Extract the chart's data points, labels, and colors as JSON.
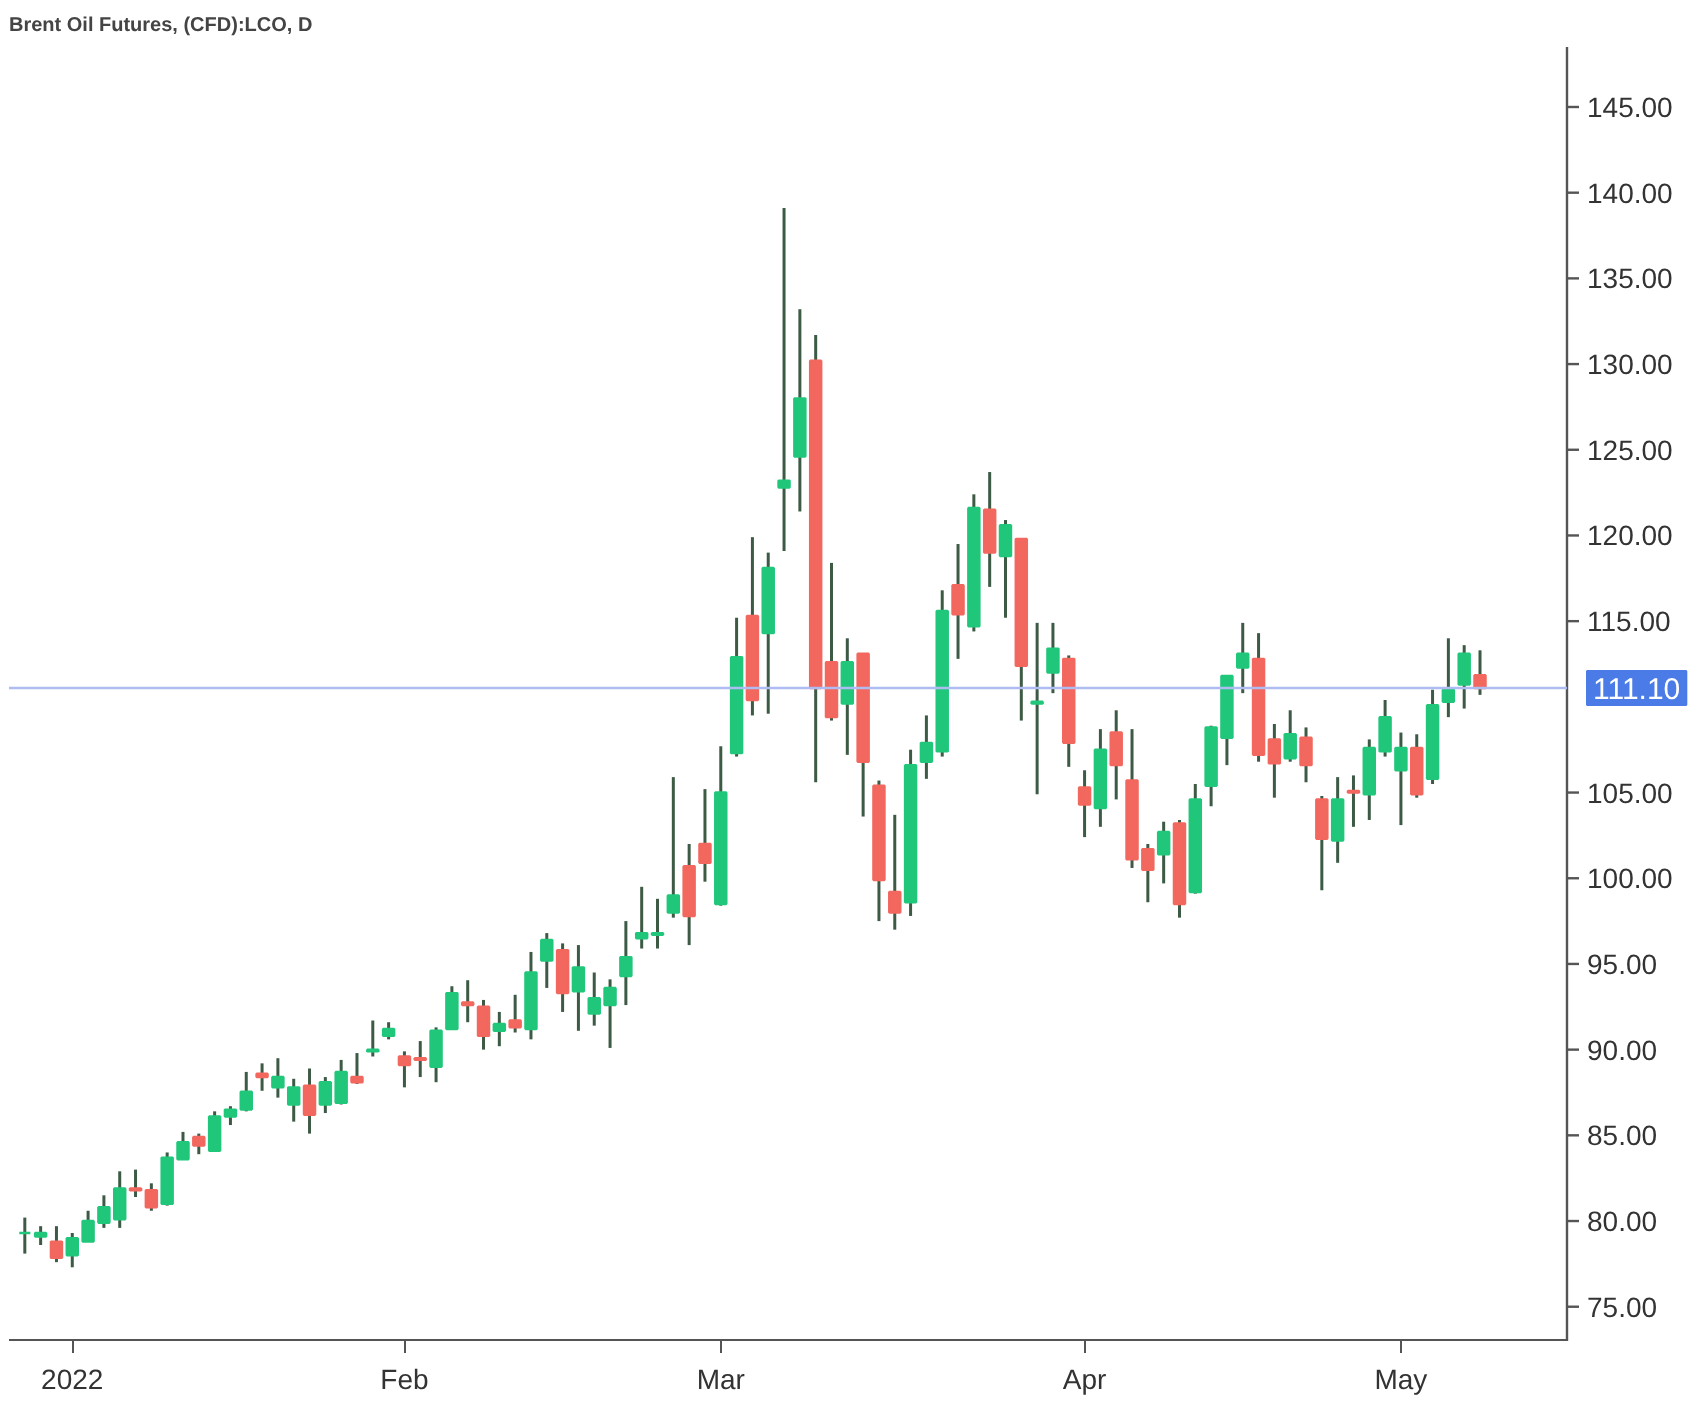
{
  "chart_data": {
    "type": "candlestick",
    "title": "Brent Oil Futures, (CFD):LCO, D",
    "categories": [
      null,
      null,
      null,
      "2022",
      null,
      null,
      null,
      null,
      null,
      null,
      null,
      null,
      null,
      null,
      null,
      null,
      null,
      null,
      null,
      null,
      null,
      null,
      null,
      null,
      "Feb",
      null,
      null,
      null,
      null,
      null,
      null,
      null,
      null,
      null,
      null,
      null,
      null,
      null,
      null,
      null,
      null,
      null,
      null,
      null,
      "Mar",
      null,
      null,
      null,
      null,
      null,
      null,
      null,
      null,
      null,
      null,
      null,
      null,
      null,
      null,
      null,
      null,
      null,
      null,
      null,
      null,
      null,
      null,
      "Apr",
      null,
      null,
      null,
      null,
      null,
      null,
      null,
      null,
      null,
      null,
      null,
      null,
      null,
      null,
      null,
      null,
      null,
      null,
      null,
      "May",
      null,
      null,
      null,
      null,
      null
    ],
    "ohlc": [
      [
        79.3,
        80.2,
        78.1,
        79.3
      ],
      [
        79.1,
        79.7,
        78.6,
        79.3
      ],
      [
        78.8,
        79.7,
        77.6,
        77.85
      ],
      [
        78.0,
        79.3,
        77.3,
        79.0
      ],
      [
        78.8,
        80.6,
        78.8,
        80.0
      ],
      [
        79.9,
        81.5,
        79.6,
        80.8
      ],
      [
        80.1,
        82.9,
        79.6,
        81.9
      ],
      [
        81.9,
        83.0,
        81.4,
        81.8
      ],
      [
        81.8,
        82.2,
        80.6,
        80.8
      ],
      [
        81.0,
        84.0,
        80.9,
        83.7
      ],
      [
        83.6,
        85.2,
        83.6,
        84.6
      ],
      [
        84.9,
        85.1,
        83.9,
        84.4
      ],
      [
        84.1,
        86.4,
        84.1,
        86.1
      ],
      [
        86.1,
        86.7,
        85.6,
        86.5
      ],
      [
        86.5,
        88.7,
        86.4,
        87.55
      ],
      [
        88.6,
        89.2,
        87.6,
        88.4
      ],
      [
        87.8,
        89.5,
        87.2,
        88.4
      ],
      [
        86.8,
        88.3,
        85.8,
        87.8
      ],
      [
        87.9,
        88.9,
        85.1,
        86.2
      ],
      [
        86.8,
        88.4,
        86.3,
        88.1
      ],
      [
        86.9,
        89.4,
        86.8,
        88.7
      ],
      [
        88.4,
        89.8,
        88.0,
        88.1
      ],
      [
        89.9,
        91.7,
        89.6,
        90.0
      ],
      [
        90.8,
        91.6,
        90.6,
        91.2
      ],
      [
        89.6,
        89.9,
        87.8,
        89.1
      ],
      [
        89.5,
        90.5,
        88.4,
        89.4
      ],
      [
        89.0,
        91.3,
        88.1,
        91.1
      ],
      [
        91.2,
        93.7,
        91.2,
        93.3
      ],
      [
        92.75,
        94.05,
        91.6,
        92.6
      ],
      [
        92.5,
        92.9,
        90.0,
        90.8
      ],
      [
        91.1,
        92.2,
        90.2,
        91.5
      ],
      [
        91.7,
        93.2,
        91.0,
        91.3
      ],
      [
        91.2,
        95.7,
        90.6,
        94.5
      ],
      [
        95.2,
        96.8,
        93.6,
        96.4
      ],
      [
        95.8,
        96.2,
        92.2,
        93.3
      ],
      [
        93.4,
        96.1,
        91.1,
        94.8
      ],
      [
        92.1,
        94.5,
        91.4,
        93.0
      ],
      [
        92.6,
        94.1,
        90.1,
        93.6
      ],
      [
        94.3,
        97.5,
        92.6,
        95.4
      ],
      [
        96.5,
        99.5,
        95.9,
        96.8
      ],
      [
        96.7,
        98.8,
        95.9,
        96.8
      ],
      [
        98.0,
        105.9,
        97.7,
        99.0
      ],
      [
        100.7,
        102.0,
        96.1,
        97.8
      ],
      [
        102.0,
        105.2,
        99.8,
        100.9
      ],
      [
        98.5,
        107.7,
        98.4,
        105.0
      ],
      [
        107.3,
        115.2,
        107.1,
        112.9
      ],
      [
        115.3,
        119.9,
        109.5,
        110.4
      ],
      [
        114.3,
        119.0,
        109.6,
        118.1
      ],
      [
        122.8,
        139.1,
        119.1,
        123.2
      ],
      [
        124.6,
        133.2,
        121.4,
        128.0
      ],
      [
        130.2,
        131.7,
        105.6,
        111.1
      ],
      [
        112.6,
        118.4,
        109.2,
        109.4
      ],
      [
        110.2,
        114.0,
        107.2,
        112.6
      ],
      [
        113.1,
        113.1,
        103.6,
        106.8
      ],
      [
        105.4,
        105.7,
        97.5,
        99.9
      ],
      [
        99.2,
        103.7,
        97.0,
        98.0
      ],
      [
        98.6,
        107.5,
        97.8,
        106.6
      ],
      [
        106.8,
        109.5,
        105.8,
        107.9
      ],
      [
        107.4,
        116.8,
        107.1,
        115.6
      ],
      [
        117.1,
        119.5,
        112.8,
        115.4
      ],
      [
        114.7,
        122.4,
        114.4,
        121.6
      ],
      [
        121.5,
        123.7,
        117.0,
        119.0
      ],
      [
        118.8,
        120.9,
        115.2,
        120.6
      ],
      [
        119.8,
        119.8,
        109.2,
        112.4
      ],
      [
        110.2,
        114.9,
        104.9,
        110.3
      ],
      [
        112.0,
        114.9,
        110.8,
        113.4
      ],
      [
        112.8,
        113.0,
        106.5,
        107.9
      ],
      [
        105.3,
        106.3,
        102.4,
        104.3
      ],
      [
        104.1,
        108.7,
        103.0,
        107.5
      ],
      [
        108.5,
        109.8,
        104.6,
        106.6
      ],
      [
        105.7,
        108.7,
        100.6,
        101.1
      ],
      [
        101.7,
        102.0,
        98.6,
        100.5
      ],
      [
        101.4,
        103.3,
        99.7,
        102.7
      ],
      [
        103.2,
        103.4,
        97.7,
        98.5
      ],
      [
        99.2,
        105.5,
        99.1,
        104.6
      ],
      [
        105.4,
        108.9,
        104.2,
        108.8
      ],
      [
        108.2,
        111.8,
        106.6,
        111.8
      ],
      [
        112.3,
        114.9,
        110.8,
        113.1
      ],
      [
        112.8,
        114.3,
        106.8,
        107.2
      ],
      [
        108.1,
        109.0,
        104.7,
        106.7
      ],
      [
        107.0,
        109.8,
        106.8,
        108.4
      ],
      [
        108.2,
        108.8,
        105.6,
        106.6
      ],
      [
        104.6,
        104.8,
        99.3,
        102.3
      ],
      [
        102.2,
        105.9,
        100.9,
        104.6
      ],
      [
        105.1,
        106.0,
        103.0,
        105.0
      ],
      [
        104.9,
        108.1,
        103.4,
        107.6
      ],
      [
        107.4,
        110.4,
        107.1,
        109.4
      ],
      [
        106.3,
        108.5,
        103.1,
        107.6
      ],
      [
        107.6,
        108.4,
        104.7,
        104.9
      ],
      [
        105.8,
        111.0,
        105.5,
        110.1
      ],
      [
        110.3,
        114.0,
        109.4,
        111.0
      ],
      [
        111.3,
        113.6,
        109.9,
        113.1
      ],
      [
        111.85,
        113.3,
        110.7,
        111.1
      ]
    ],
    "colors": [
      "#20c77a",
      "#20c77a",
      "#f2675e",
      "#20c77a",
      "#20c77a",
      "#20c77a",
      "#20c77a",
      "#f2675e",
      "#f2675e",
      "#20c77a",
      "#20c77a",
      "#f2675e",
      "#20c77a",
      "#20c77a",
      "#20c77a",
      "#f2675e",
      "#20c77a",
      "#20c77a",
      "#f2675e",
      "#20c77a",
      "#20c77a",
      "#f2675e",
      "#20c77a",
      "#20c77a",
      "#f2675e",
      "#f2675e",
      "#20c77a",
      "#20c77a",
      "#f2675e",
      "#f2675e",
      "#20c77a",
      "#f2675e",
      "#20c77a",
      "#20c77a",
      "#f2675e",
      "#20c77a",
      "#20c77a",
      "#20c77a",
      "#20c77a",
      "#20c77a",
      "#20c77a",
      "#20c77a",
      "#f2675e",
      "#f2675e",
      "#20c77a",
      "#20c77a",
      "#f2675e",
      "#20c77a",
      "#20c77a",
      "#20c77a",
      "#f2675e",
      "#f2675e",
      "#20c77a",
      "#f2675e",
      "#f2675e",
      "#f2675e",
      "#20c77a",
      "#20c77a",
      "#20c77a",
      "#f2675e",
      "#20c77a",
      "#f2675e",
      "#20c77a",
      "#f2675e",
      "#20c77a",
      "#20c77a",
      "#f2675e",
      "#f2675e",
      "#20c77a",
      "#f2675e",
      "#f2675e",
      "#f2675e",
      "#20c77a",
      "#f2675e",
      "#20c77a",
      "#20c77a",
      "#20c77a",
      "#20c77a",
      "#f2675e",
      "#f2675e",
      "#20c77a",
      "#f2675e",
      "#f2675e",
      "#20c77a",
      "#f2675e",
      "#20c77a",
      "#20c77a",
      "#20c77a",
      "#f2675e",
      "#20c77a",
      "#20c77a",
      "#20c77a",
      "#f2675e"
    ],
    "ylim": [
      73,
      148.5
    ],
    "yticks": [
      {
        "value": 75,
        "label": "75.00"
      },
      {
        "value": 80,
        "label": "80.00"
      },
      {
        "value": 85,
        "label": "85.00"
      },
      {
        "value": 90,
        "label": "90.00"
      },
      {
        "value": 95,
        "label": "95.00"
      },
      {
        "value": 100,
        "label": "100.00"
      },
      {
        "value": 105,
        "label": "105.00"
      },
      {
        "value": 115,
        "label": "115.00"
      },
      {
        "value": 120,
        "label": "120.00"
      },
      {
        "value": 125,
        "label": "125.00"
      },
      {
        "value": 130,
        "label": "130.00"
      },
      {
        "value": 135,
        "label": "135.00"
      },
      {
        "value": 140,
        "label": "140.00"
      },
      {
        "value": 145,
        "label": "145.00"
      }
    ],
    "ref_lines": [
      {
        "axis": "y",
        "value": 111.1,
        "label": "111.10",
        "color": "#aebcf2"
      }
    ],
    "grid": false
  }
}
